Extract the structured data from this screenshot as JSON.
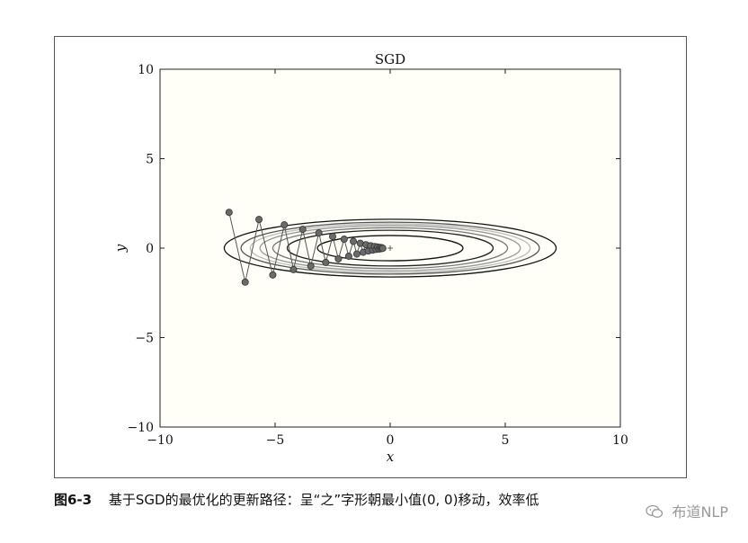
{
  "chart_data": {
    "type": "line",
    "title": "SGD",
    "xlabel": "x",
    "ylabel": "y",
    "xlim": [
      -10,
      10
    ],
    "ylim": [
      -10,
      10
    ],
    "xticks": [
      -10,
      -5,
      0,
      5,
      10
    ],
    "yticks": [
      -10,
      -5,
      0,
      5,
      10
    ],
    "xtick_labels": [
      "−10",
      "−5",
      "0",
      "5",
      "10"
    ],
    "ytick_labels": [
      "−10",
      "−5",
      "0",
      "5",
      "10"
    ],
    "grid": false,
    "contour_function": "x^2/20 + y^2",
    "contour_levels": [
      0.5,
      1.0,
      1.3,
      1.6,
      1.85,
      2.1,
      2.6
    ],
    "minimum_marker": [
      0,
      0
    ],
    "series": [
      {
        "x": [
          -7.0,
          -6.3,
          -5.7,
          -5.1,
          -4.6,
          -4.2,
          -3.8,
          -3.45,
          -3.1,
          -2.8,
          -2.5,
          -2.25,
          -2.0,
          -1.8,
          -1.6,
          -1.45,
          -1.3,
          -1.17,
          -1.05,
          -0.95,
          -0.85,
          -0.76,
          -0.68,
          -0.61,
          -0.55,
          -0.49,
          -0.44,
          -0.4,
          -0.36,
          -0.32
        ],
        "y": [
          2.0,
          -1.9,
          1.6,
          -1.5,
          1.3,
          -1.2,
          1.05,
          -1.0,
          0.85,
          -0.8,
          0.65,
          -0.6,
          0.5,
          -0.45,
          0.38,
          -0.33,
          0.27,
          -0.23,
          0.19,
          -0.16,
          0.13,
          -0.11,
          0.09,
          -0.07,
          0.06,
          -0.05,
          0.04,
          -0.03,
          0.02,
          -0.01
        ]
      }
    ]
  },
  "caption": {
    "figure_number": "图6-3",
    "text": "基于SGD的最优化的更新路径：呈“之”字形朝最小值(0, 0)移动，效率低"
  },
  "watermark": {
    "text": "布道NLP"
  }
}
